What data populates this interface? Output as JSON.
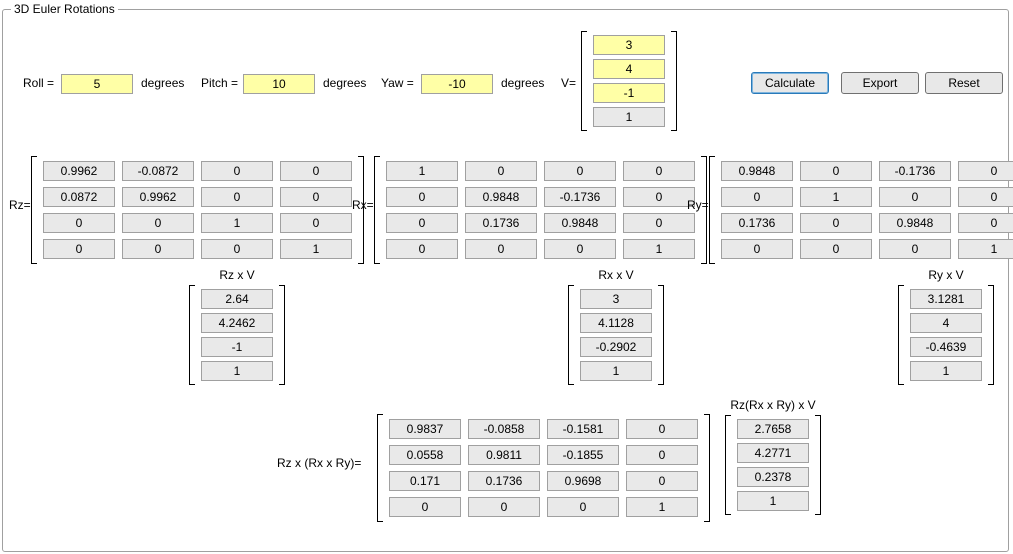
{
  "group_title": "3D Euler Rotations",
  "inputs": {
    "roll_label": "Roll =",
    "roll": "5",
    "roll_units": "degrees",
    "pitch_label": "Pitch =",
    "pitch": "10",
    "pitch_units": "degrees",
    "yaw_label": "Yaw =",
    "yaw": "-10",
    "yaw_units": "degrees",
    "v_label": "V="
  },
  "buttons": {
    "calculate": "Calculate",
    "export": "Export",
    "reset": "Reset"
  },
  "V": {
    "cells": [
      "3",
      "4",
      "-1",
      "1"
    ],
    "highlight": [
      true,
      true,
      true,
      false
    ]
  },
  "Rz": {
    "label": "Rz=",
    "rows": [
      [
        "0.9962",
        "-0.0872",
        "0",
        "0"
      ],
      [
        "0.0872",
        "0.9962",
        "0",
        "0"
      ],
      [
        "0",
        "0",
        "1",
        "0"
      ],
      [
        "0",
        "0",
        "0",
        "1"
      ]
    ]
  },
  "Rx": {
    "label": "Rx=",
    "rows": [
      [
        "1",
        "0",
        "0",
        "0"
      ],
      [
        "0",
        "0.9848",
        "-0.1736",
        "0"
      ],
      [
        "0",
        "0.1736",
        "0.9848",
        "0"
      ],
      [
        "0",
        "0",
        "0",
        "1"
      ]
    ]
  },
  "Ry": {
    "label": "Ry=",
    "rows": [
      [
        "0.9848",
        "0",
        "-0.1736",
        "0"
      ],
      [
        "0",
        "1",
        "0",
        "0"
      ],
      [
        "0.1736",
        "0",
        "0.9848",
        "0"
      ],
      [
        "0",
        "0",
        "0",
        "1"
      ]
    ]
  },
  "RzV": {
    "title": "Rz x V",
    "cells": [
      "2.64",
      "4.2462",
      "-1",
      "1"
    ]
  },
  "RxV": {
    "title": "Rx x V",
    "cells": [
      "3",
      "4.1128",
      "-0.2902",
      "1"
    ]
  },
  "RyV": {
    "title": "Ry x V",
    "cells": [
      "3.1281",
      "4",
      "-0.4639",
      "1"
    ]
  },
  "Comb": {
    "label": "Rz x (Rx x Ry)=",
    "rows": [
      [
        "0.9837",
        "-0.0858",
        "-0.1581",
        "0"
      ],
      [
        "0.0558",
        "0.9811",
        "-0.1855",
        "0"
      ],
      [
        "0.171",
        "0.1736",
        "0.9698",
        "0"
      ],
      [
        "0",
        "0",
        "0",
        "1"
      ]
    ]
  },
  "CombV": {
    "title": "Rz(Rx x Ry) x V",
    "cells": [
      "2.7658",
      "4.2771",
      "0.2378",
      "1"
    ]
  },
  "style": {
    "input_bg": "#ffffa6",
    "cell_bg": "#e9e9e9",
    "cell_border": "#a0a0a0",
    "btn_primary_border": "#2a7ab9"
  }
}
